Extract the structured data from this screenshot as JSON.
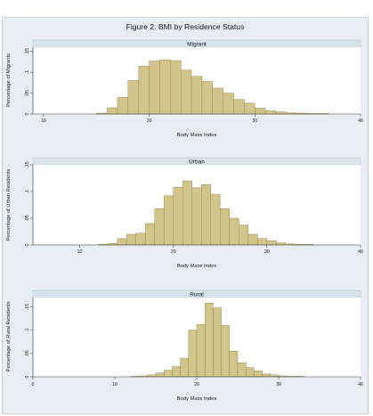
{
  "figure_title": "Figure 2. BMI by Residence Status",
  "colors": {
    "bar_fill": "#d2c58b",
    "bar_stroke": "#8c7f43",
    "background": "#e8eef3",
    "plot_area": "#ffffff",
    "strip": "#d9e4ea"
  },
  "chart_data": [
    {
      "type": "bar",
      "panel_title": "Migrant",
      "xlabel": "Body Mass Index",
      "ylabel": "Percentage of Migrants",
      "xlim": [
        9,
        40
      ],
      "ylim": [
        0,
        0.16
      ],
      "x_ticks": [
        10,
        20,
        30,
        40
      ],
      "y_ticks": [
        0,
        0.05,
        0.1,
        0.15
      ],
      "y_tick_labels": [
        "0",
        ".05",
        ".1",
        ".15"
      ],
      "bin_width": 1,
      "bins": [
        {
          "x": 15,
          "y": 0.002
        },
        {
          "x": 16,
          "y": 0.015
        },
        {
          "x": 17,
          "y": 0.04
        },
        {
          "x": 18,
          "y": 0.08
        },
        {
          "x": 19,
          "y": 0.115
        },
        {
          "x": 20,
          "y": 0.127
        },
        {
          "x": 21,
          "y": 0.13
        },
        {
          "x": 22,
          "y": 0.128
        },
        {
          "x": 23,
          "y": 0.105
        },
        {
          "x": 24,
          "y": 0.09
        },
        {
          "x": 25,
          "y": 0.078
        },
        {
          "x": 26,
          "y": 0.062
        },
        {
          "x": 27,
          "y": 0.05
        },
        {
          "x": 28,
          "y": 0.035
        },
        {
          "x": 29,
          "y": 0.026
        },
        {
          "x": 30,
          "y": 0.014
        },
        {
          "x": 31,
          "y": 0.008
        },
        {
          "x": 32,
          "y": 0.005
        },
        {
          "x": 33,
          "y": 0.003
        },
        {
          "x": 34,
          "y": 0.002
        },
        {
          "x": 35,
          "y": 0.001
        },
        {
          "x": 36,
          "y": 0.001
        }
      ]
    },
    {
      "type": "bar",
      "panel_title": "Urban",
      "xlabel": "Body Mass Index",
      "ylabel": "Percentage of Urban Residents",
      "xlim": [
        5,
        40
      ],
      "ylim": [
        0,
        0.15
      ],
      "x_ticks": [
        10,
        20,
        30,
        40
      ],
      "y_ticks": [
        0,
        0.05,
        0.1,
        0.15
      ],
      "y_tick_labels": [
        "0",
        ".05",
        ".1",
        ".15"
      ],
      "bin_width": 1,
      "bins": [
        {
          "x": 12,
          "y": 0.001
        },
        {
          "x": 13,
          "y": 0.003
        },
        {
          "x": 14,
          "y": 0.012
        },
        {
          "x": 15,
          "y": 0.02
        },
        {
          "x": 16,
          "y": 0.022
        },
        {
          "x": 17,
          "y": 0.04
        },
        {
          "x": 18,
          "y": 0.068
        },
        {
          "x": 19,
          "y": 0.092
        },
        {
          "x": 20,
          "y": 0.108
        },
        {
          "x": 21,
          "y": 0.12
        },
        {
          "x": 22,
          "y": 0.107
        },
        {
          "x": 23,
          "y": 0.113
        },
        {
          "x": 24,
          "y": 0.095
        },
        {
          "x": 25,
          "y": 0.068
        },
        {
          "x": 26,
          "y": 0.05
        },
        {
          "x": 27,
          "y": 0.037
        },
        {
          "x": 28,
          "y": 0.02
        },
        {
          "x": 29,
          "y": 0.012
        },
        {
          "x": 30,
          "y": 0.008
        },
        {
          "x": 31,
          "y": 0.004
        },
        {
          "x": 32,
          "y": 0.002
        },
        {
          "x": 33,
          "y": 0.001
        },
        {
          "x": 34,
          "y": 0.001
        }
      ]
    },
    {
      "type": "bar",
      "panel_title": "Rural",
      "xlabel": "Body Mass Index",
      "ylabel": "Percentage of Rural Residents",
      "xlim": [
        0,
        40
      ],
      "ylim": [
        0,
        0.17
      ],
      "x_ticks": [
        0,
        10,
        20,
        30,
        40
      ],
      "y_ticks": [
        0,
        0.05,
        0.1,
        0.15
      ],
      "y_tick_labels": [
        "0",
        ".05",
        ".1",
        ".15"
      ],
      "bin_width": 1,
      "bins": [
        {
          "x": 12,
          "y": 0.001
        },
        {
          "x": 13,
          "y": 0.002
        },
        {
          "x": 14,
          "y": 0.004
        },
        {
          "x": 15,
          "y": 0.008
        },
        {
          "x": 16,
          "y": 0.014
        },
        {
          "x": 17,
          "y": 0.022
        },
        {
          "x": 18,
          "y": 0.04
        },
        {
          "x": 19,
          "y": 0.1
        },
        {
          "x": 20,
          "y": 0.112
        },
        {
          "x": 21,
          "y": 0.158
        },
        {
          "x": 22,
          "y": 0.148
        },
        {
          "x": 23,
          "y": 0.11
        },
        {
          "x": 24,
          "y": 0.055
        },
        {
          "x": 25,
          "y": 0.03
        },
        {
          "x": 26,
          "y": 0.02
        },
        {
          "x": 27,
          "y": 0.013
        },
        {
          "x": 28,
          "y": 0.006
        },
        {
          "x": 29,
          "y": 0.004
        },
        {
          "x": 30,
          "y": 0.002
        },
        {
          "x": 31,
          "y": 0.001
        },
        {
          "x": 32,
          "y": 0.001
        }
      ]
    }
  ]
}
